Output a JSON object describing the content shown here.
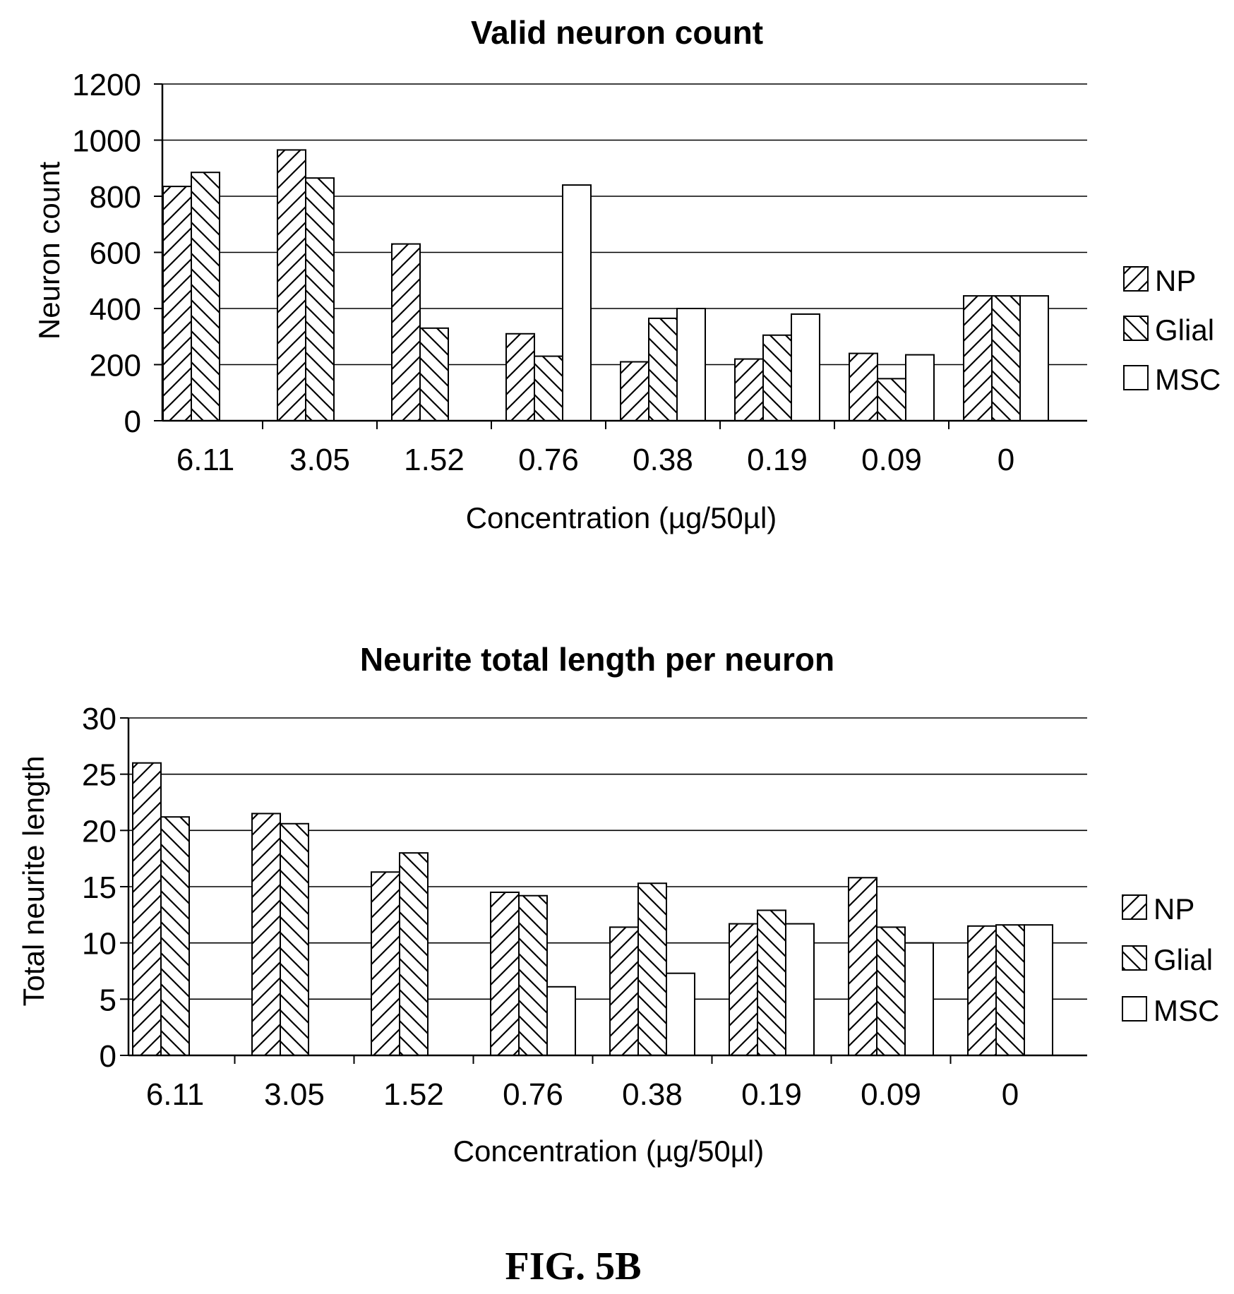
{
  "figure_caption": "FIG. 5B",
  "colors": {
    "ink": "#000000",
    "paper": "#ffffff",
    "grid": "#000000"
  },
  "chart_data": [
    {
      "type": "bar",
      "title": "Valid neuron count",
      "xlabel": "Concentration (µg/50µl)",
      "ylabel": "Neuron count",
      "ylim": [
        0,
        1200
      ],
      "yticks": [
        0,
        200,
        400,
        600,
        800,
        1000,
        1200
      ],
      "grid": true,
      "legend_position": "right",
      "categories": [
        "6.11",
        "3.05",
        "1.52",
        "0.76",
        "0.38",
        "0.19",
        "0.09",
        "0"
      ],
      "series": [
        {
          "name": "NP",
          "pattern": "hatch-forward",
          "values": [
            835,
            965,
            630,
            310,
            210,
            220,
            240,
            445
          ]
        },
        {
          "name": "Glial",
          "pattern": "hatch-back",
          "values": [
            885,
            865,
            330,
            230,
            365,
            305,
            150,
            445
          ]
        },
        {
          "name": "MSC",
          "pattern": "blank",
          "values": [
            0,
            0,
            0,
            840,
            400,
            380,
            235,
            445
          ]
        }
      ]
    },
    {
      "type": "bar",
      "title": "Neurite total length per neuron",
      "xlabel": "Concentration (µg/50µl)",
      "ylabel": "Total neurite length",
      "ylim": [
        0,
        30
      ],
      "yticks": [
        0,
        5,
        10,
        15,
        20,
        25,
        30
      ],
      "grid": true,
      "legend_position": "right",
      "categories": [
        "6.11",
        "3.05",
        "1.52",
        "0.76",
        "0.38",
        "0.19",
        "0.09",
        "0"
      ],
      "series": [
        {
          "name": "NP",
          "pattern": "hatch-forward",
          "values": [
            26.0,
            21.5,
            16.3,
            14.5,
            11.4,
            11.7,
            15.8,
            11.5
          ]
        },
        {
          "name": "Glial",
          "pattern": "hatch-back",
          "values": [
            21.2,
            20.6,
            18.0,
            14.2,
            15.3,
            12.9,
            11.4,
            11.6
          ]
        },
        {
          "name": "MSC",
          "pattern": "blank",
          "values": [
            0,
            0,
            0,
            6.1,
            7.3,
            11.7,
            10.0,
            11.6
          ]
        }
      ]
    }
  ]
}
